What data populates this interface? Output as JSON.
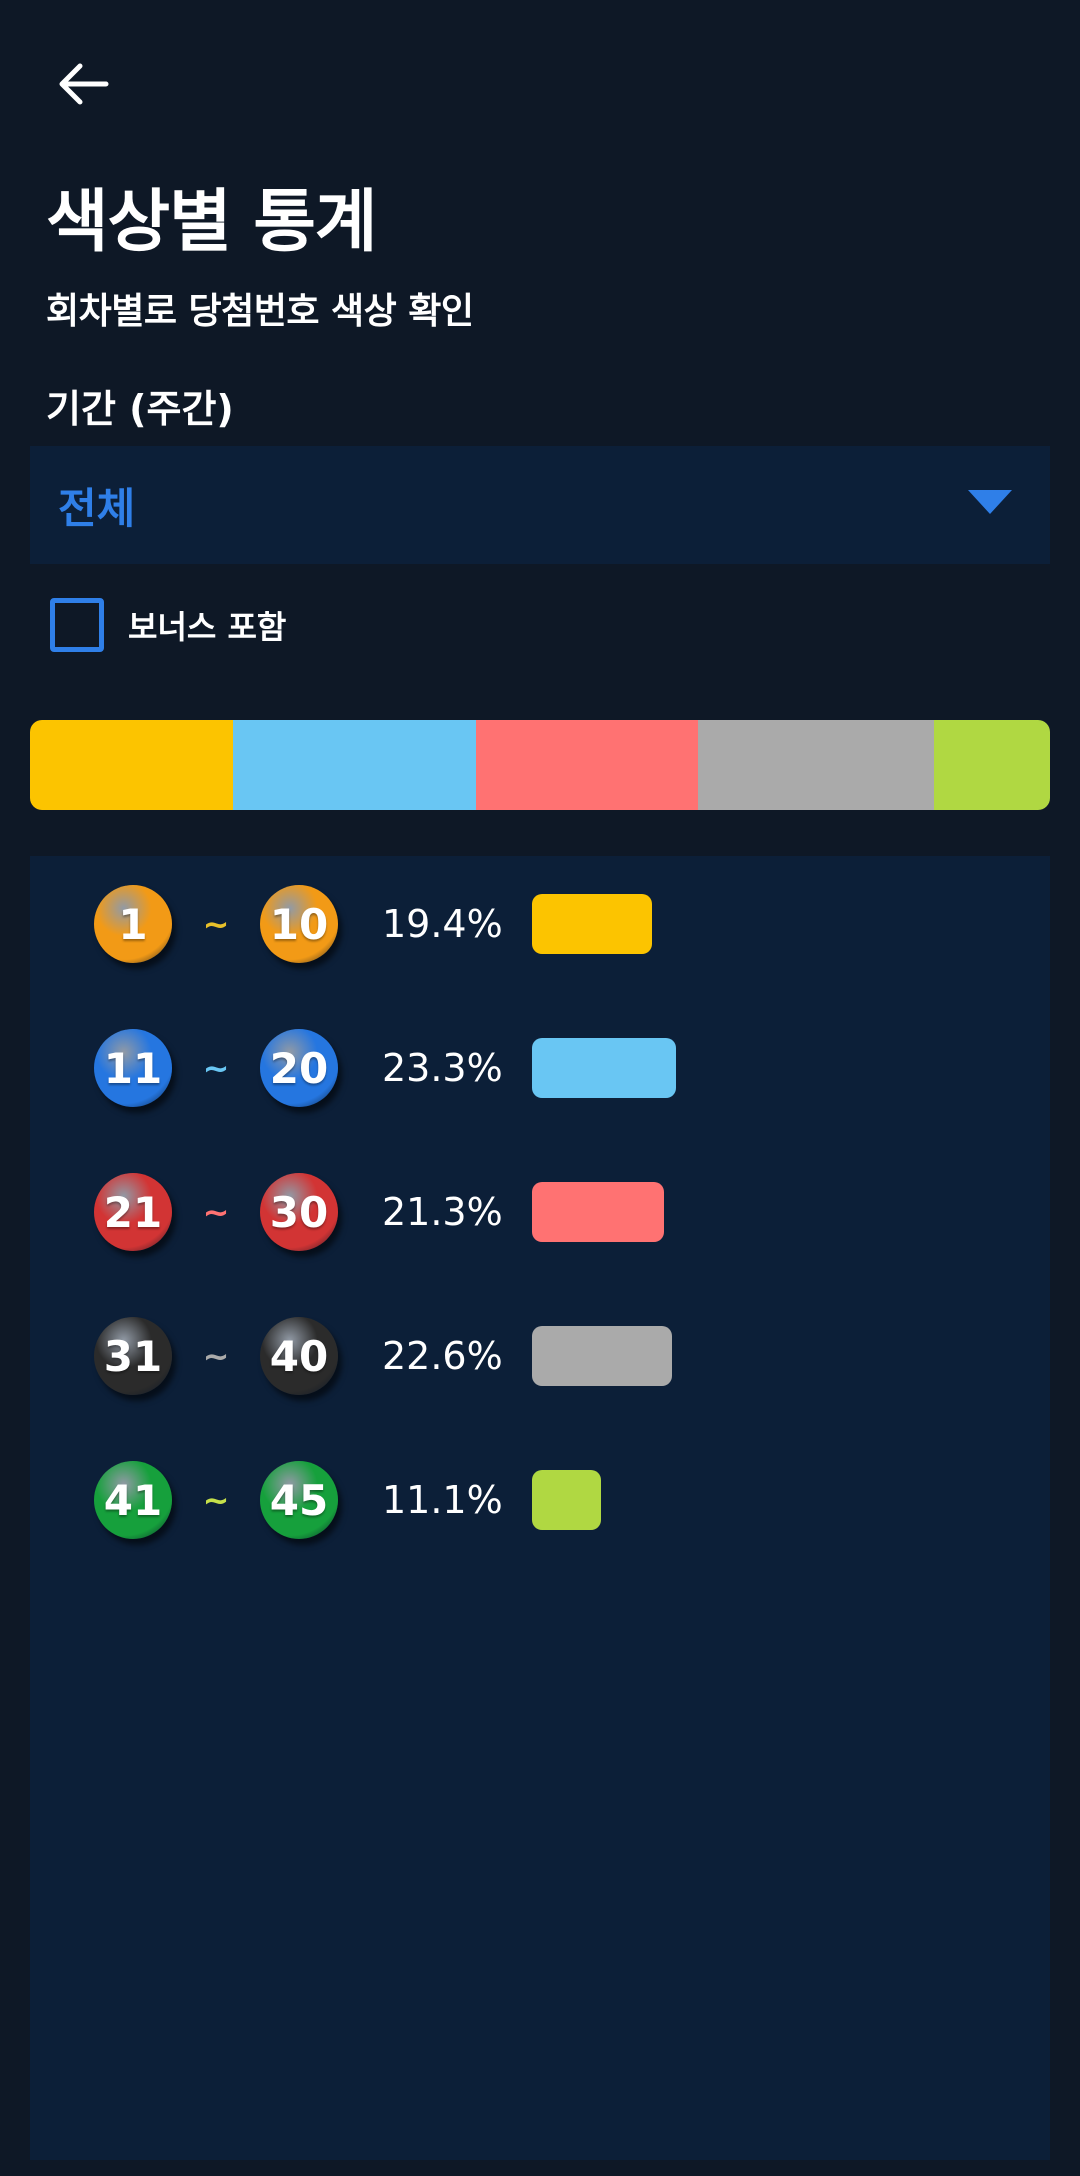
{
  "header": {
    "title": "색상별 통계",
    "subtitle": "회차별로 당첨번호 색상 확인"
  },
  "period": {
    "label": "기간 (주간)",
    "selected": "전체"
  },
  "bonus": {
    "label": "보너스 포함",
    "checked": false
  },
  "colors": {
    "yellow": "#fcc400",
    "blue": "#69c6f3",
    "red": "#ff7272",
    "gray": "#aaaaaa",
    "green": "#b0d842",
    "accent": "#2f7fe8"
  },
  "chart_data": {
    "type": "bar",
    "categories": [
      "1 ~ 10",
      "11 ~ 20",
      "21 ~ 30",
      "31 ~ 40",
      "41 ~ 45"
    ],
    "values": [
      19.4,
      23.3,
      21.3,
      22.6,
      11.1
    ],
    "labels": [
      "19.4%",
      "23.3%",
      "21.3%",
      "22.6%",
      "11.1%"
    ]
  },
  "rows": [
    {
      "from": "1",
      "to": "10",
      "percent": "19.4%",
      "value": 19.4,
      "ball_color": "#f29a16",
      "tilde_color": "#e8c02a",
      "bar_color": "#fcc400"
    },
    {
      "from": "11",
      "to": "20",
      "percent": "23.3%",
      "value": 23.3,
      "ball_color": "#2576e0",
      "tilde_color": "#69c6f3",
      "bar_color": "#69c6f3"
    },
    {
      "from": "21",
      "to": "30",
      "percent": "21.3%",
      "value": 21.3,
      "ball_color": "#d23434",
      "tilde_color": "#ff7272",
      "bar_color": "#ff7272"
    },
    {
      "from": "31",
      "to": "40",
      "percent": "22.6%",
      "value": 22.6,
      "ball_color": "#2b2b2b",
      "tilde_color": "#aaaaaa",
      "bar_color": "#aaaaaa"
    },
    {
      "from": "41",
      "to": "45",
      "percent": "11.1%",
      "value": 11.1,
      "ball_color": "#16a03c",
      "tilde_color": "#c6e04a",
      "bar_color": "#b0d842"
    }
  ],
  "icons": {
    "back": "arrow-left-icon",
    "dropdown": "caret-down-icon"
  }
}
